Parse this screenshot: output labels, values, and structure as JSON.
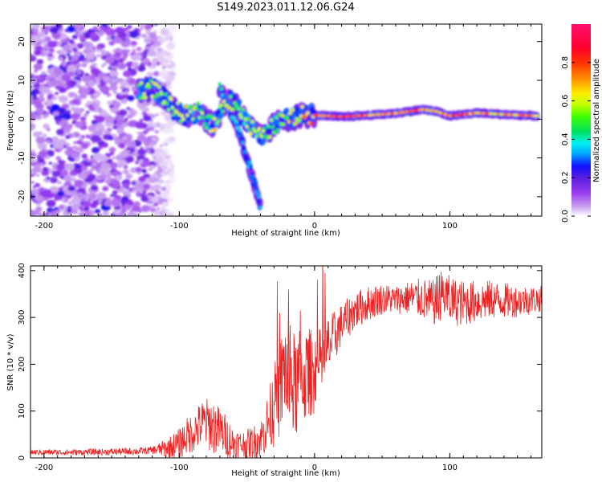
{
  "title": "S149.2023.011.12.06.G24",
  "chart_data": [
    {
      "type": "heatmap",
      "name": "radio-occultation-spectrum",
      "xlabel": "Height of straight line (km)",
      "ylabel": "Frequency (Hz)",
      "xlim": [
        -210,
        168
      ],
      "ylim": [
        -25,
        24.5
      ],
      "xticks": [
        -200,
        -100,
        0,
        100
      ],
      "yticks": [
        -20,
        -10,
        0,
        10,
        20
      ],
      "colorbar": {
        "label": "Normalized spectral amplitude",
        "range": [
          0.0,
          1.0
        ],
        "ticks": [
          "0.0",
          "0.2",
          "0.4",
          "0.6",
          "0.8"
        ],
        "tick_values": [
          0.0,
          0.2,
          0.4,
          0.6,
          0.8
        ],
        "colors": [
          "#ffffff",
          "#c8a0f0",
          "#9a3df0",
          "#5a1ee0",
          "#1010ff",
          "#00b0ff",
          "#00f0f0",
          "#00e060",
          "#40ff00",
          "#c0ff00",
          "#ffee00",
          "#ffa000",
          "#ff3000",
          "#ff0030",
          "#ff1070"
        ],
        "color_stops": [
          0.0,
          0.05,
          0.12,
          0.2,
          0.26,
          0.33,
          0.38,
          0.44,
          0.52,
          0.58,
          0.64,
          0.7,
          0.8,
          0.88,
          1.0
        ]
      },
      "ridge": [
        {
          "x": -130,
          "y": 7.5,
          "a": 0.55
        },
        {
          "x": -120,
          "y": 8.0,
          "a": 0.6
        },
        {
          "x": -112,
          "y": 6.0,
          "a": 0.5
        },
        {
          "x": -105,
          "y": 2.5,
          "a": 0.55
        },
        {
          "x": -95,
          "y": 1.0,
          "a": 0.6
        },
        {
          "x": -85,
          "y": 2.0,
          "a": 0.55
        },
        {
          "x": -75,
          "y": -2.0,
          "a": 0.6
        },
        {
          "x": -65,
          "y": 5.0,
          "a": 0.6
        },
        {
          "x": -58,
          "y": 4.0,
          "a": 0.55
        },
        {
          "x": -52,
          "y": 0.0,
          "a": 0.5
        },
        {
          "x": -45,
          "y": -3.0,
          "a": 0.6
        },
        {
          "x": -38,
          "y": -5.0,
          "a": 0.55
        },
        {
          "x": -30,
          "y": -1.5,
          "a": 0.55
        },
        {
          "x": -20,
          "y": 0.0,
          "a": 0.6
        },
        {
          "x": -10,
          "y": 1.0,
          "a": 0.65
        },
        {
          "x": 0,
          "y": 1.0,
          "a": 0.75
        },
        {
          "x": 20,
          "y": 0.6,
          "a": 0.9
        },
        {
          "x": 40,
          "y": 1.0,
          "a": 0.75
        },
        {
          "x": 60,
          "y": 1.5,
          "a": 0.8
        },
        {
          "x": 80,
          "y": 2.5,
          "a": 0.8
        },
        {
          "x": 90,
          "y": 2.0,
          "a": 0.7
        },
        {
          "x": 100,
          "y": 0.8,
          "a": 0.85
        },
        {
          "x": 120,
          "y": 1.6,
          "a": 0.75
        },
        {
          "x": 140,
          "y": 1.2,
          "a": 0.7
        },
        {
          "x": 165,
          "y": 0.8,
          "a": 0.75
        }
      ],
      "branch": [
        {
          "x": -70,
          "y": 8.0,
          "a": 0.45
        },
        {
          "x": -62,
          "y": 2.0,
          "a": 0.4
        },
        {
          "x": -55,
          "y": -4.0,
          "a": 0.35
        },
        {
          "x": -50,
          "y": -10.0,
          "a": 0.3
        },
        {
          "x": -45,
          "y": -16.0,
          "a": 0.3
        },
        {
          "x": -40,
          "y": -22.0,
          "a": 0.3
        }
      ]
    },
    {
      "type": "line",
      "name": "snr-profile",
      "xlabel": "Height of straight line (km)",
      "ylabel": "SNR (10 * v/v)",
      "xlim": [
        -210,
        168
      ],
      "ylim": [
        0,
        410
      ],
      "xticks": [
        -200,
        -100,
        0,
        100
      ],
      "yticks": [
        0,
        100,
        200,
        300,
        400
      ],
      "color": "#ee2222",
      "series": [
        {
          "name": "SNR",
          "x": [
            -210,
            -180,
            -150,
            -125,
            -110,
            -100,
            -95,
            -88,
            -82,
            -76,
            -72,
            -68,
            -60,
            -50,
            -40,
            -35,
            -30,
            -25,
            -22,
            -20,
            -15,
            -10,
            -5,
            0,
            5,
            10,
            20,
            30,
            40,
            50,
            60,
            70,
            80,
            88,
            92,
            96,
            100,
            110,
            130,
            150,
            168
          ],
          "y": [
            12,
            12,
            13,
            15,
            20,
            30,
            45,
            60,
            75,
            70,
            60,
            55,
            30,
            28,
            40,
            70,
            110,
            150,
            200,
            170,
            150,
            170,
            180,
            185,
            200,
            235,
            285,
            315,
            330,
            340,
            338,
            342,
            340,
            330,
            345,
            350,
            335,
            330,
            338,
            335,
            340
          ]
        }
      ],
      "noise_amplitude": [
        {
          "x": -210,
          "a": 6
        },
        {
          "x": -120,
          "a": 8
        },
        {
          "x": -90,
          "a": 45
        },
        {
          "x": -75,
          "a": 60
        },
        {
          "x": -55,
          "a": 30
        },
        {
          "x": -40,
          "a": 40
        },
        {
          "x": -25,
          "a": 110
        },
        {
          "x": -15,
          "a": 120
        },
        {
          "x": 0,
          "a": 90
        },
        {
          "x": 20,
          "a": 45
        },
        {
          "x": 60,
          "a": 30
        },
        {
          "x": 95,
          "a": 55
        },
        {
          "x": 168,
          "a": 28
        }
      ]
    }
  ]
}
